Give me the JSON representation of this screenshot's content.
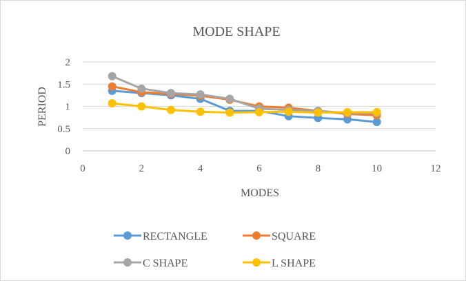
{
  "chart_data": {
    "type": "line",
    "title": "MODE SHAPE",
    "xlabel": "MODES",
    "ylabel": "PERIOD",
    "xlim": [
      0,
      12
    ],
    "ylim": [
      0,
      2
    ],
    "xticks": [
      "0",
      "2",
      "4",
      "6",
      "8",
      "10",
      "12"
    ],
    "yticks": [
      "0",
      "0.5",
      "1",
      "1.5",
      "2"
    ],
    "grid": true,
    "legend_position": "bottom",
    "x": [
      1,
      2,
      3,
      4,
      5,
      6,
      7,
      8,
      9,
      10
    ],
    "series": [
      {
        "name": "RECTANGLE",
        "color": "#5b9bd5",
        "values": [
          1.35,
          1.3,
          1.25,
          1.17,
          0.9,
          0.9,
          0.78,
          0.74,
          0.71,
          0.65
        ]
      },
      {
        "name": "SQUARE",
        "color": "#ed7d31",
        "values": [
          1.45,
          1.32,
          1.28,
          1.24,
          1.15,
          1.0,
          0.97,
          0.9,
          0.83,
          0.8
        ]
      },
      {
        "name": "C SHAPE",
        "color": "#a5a5a5",
        "values": [
          1.68,
          1.4,
          1.3,
          1.27,
          1.17,
          0.95,
          0.92,
          0.9,
          0.85,
          0.85
        ]
      },
      {
        "name": "L SHAPE",
        "color": "#ffc000",
        "values": [
          1.07,
          1.0,
          0.92,
          0.88,
          0.86,
          0.87,
          0.88,
          0.86,
          0.87,
          0.87
        ]
      }
    ]
  }
}
